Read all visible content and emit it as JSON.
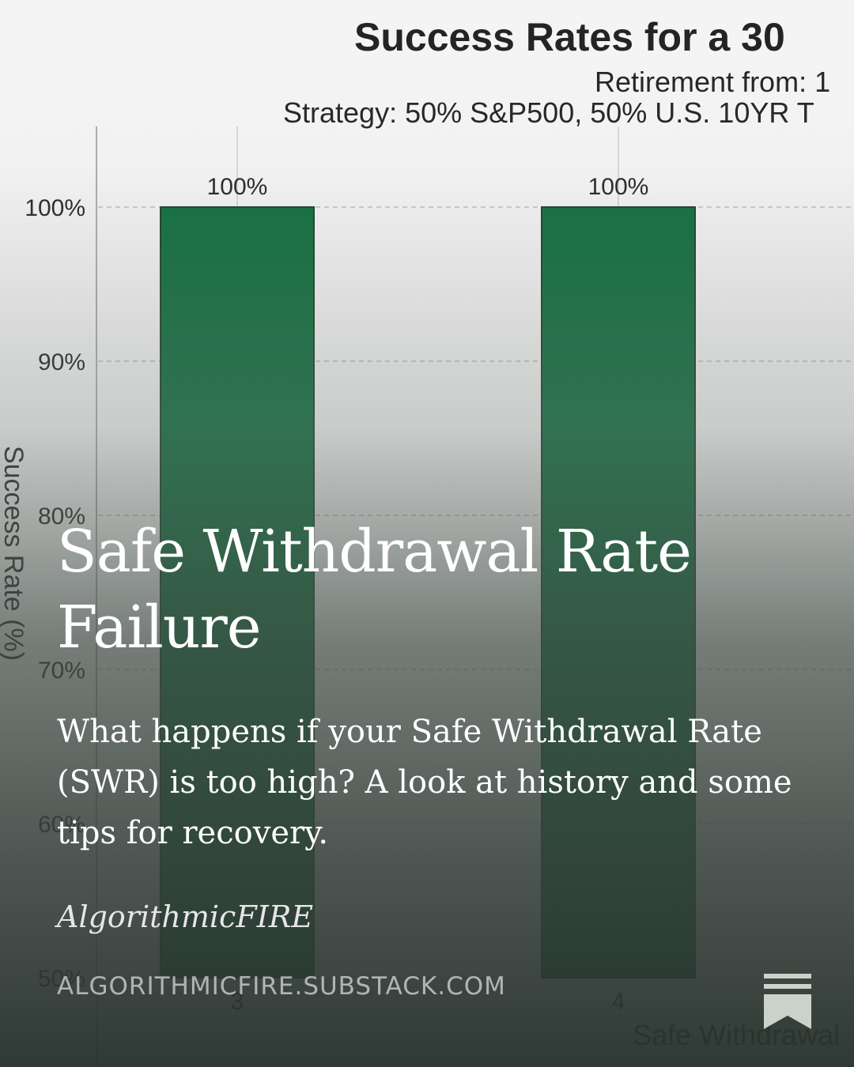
{
  "chart_data": {
    "type": "bar",
    "title": "Success Rates for a 30",
    "subtitle_line1": "Retirement from: 1",
    "subtitle_line2": "Strategy: 50% S&P500, 50% U.S. 10YR T",
    "ylabel": "Success Rate (%)",
    "xlabel": "Safe Withdrawal",
    "categories": [
      "3",
      "4"
    ],
    "values": [
      100,
      100
    ],
    "data_labels": [
      "100%",
      "100%"
    ],
    "ylim": [
      50,
      100
    ],
    "yticks": [
      {
        "value": 100,
        "label": "100%"
      },
      {
        "value": 90,
        "label": "90%"
      },
      {
        "value": 80,
        "label": "80%"
      },
      {
        "value": 70,
        "label": "70%"
      },
      {
        "value": 60,
        "label": "60%"
      },
      {
        "value": 50,
        "label": "50%"
      }
    ],
    "grid": true,
    "bar_color": "#0b6a3a"
  },
  "post": {
    "title": "Safe Withdrawal Rate Failure",
    "subtitle": "What happens if your Safe Withdrawal Rate (SWR) is too high? A look at history and some tips for recovery.",
    "author": "AlgorithmicFIRE",
    "site": "ALGORITHMICFIRE.SUBSTACK.COM",
    "logo_icon": "substack-bookmark-icon"
  }
}
